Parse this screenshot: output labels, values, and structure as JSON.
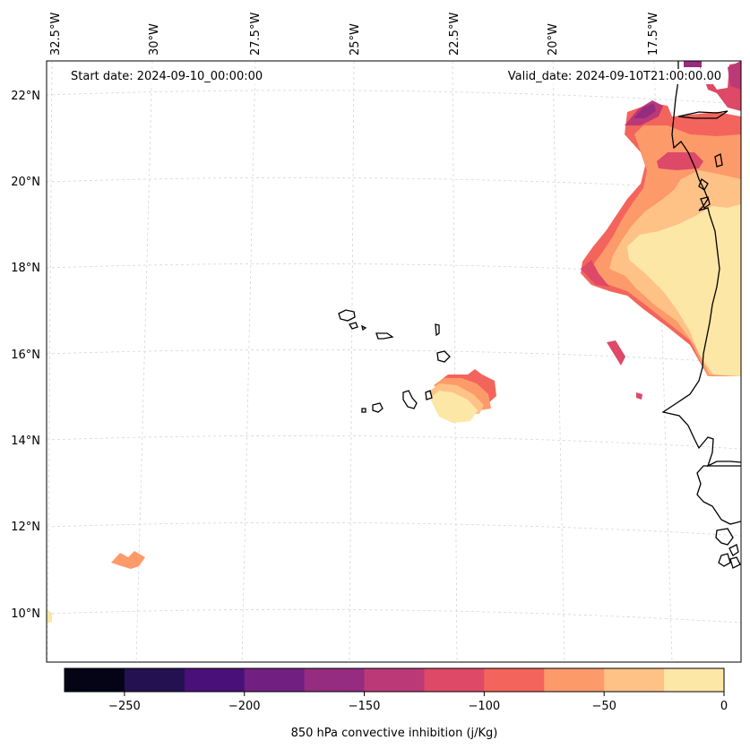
{
  "map": {
    "projection": "lambert-conformal",
    "lon_labels": [
      "32.5°W",
      "30°W",
      "27.5°W",
      "25°W",
      "22.5°W",
      "20°W",
      "17.5°W"
    ],
    "lat_labels": [
      "22°N",
      "20°N",
      "18°N",
      "16°N",
      "14°N",
      "12°N",
      "10°N"
    ],
    "coastline_color": "#000000",
    "grid_color": "#d0d0d0"
  },
  "annotations": {
    "start_date": "Start date: 2024-09-10_00:00:00",
    "valid_date": "Valid_date: 2024-09-10T21:00:00.00"
  },
  "colorbar": {
    "label": "850 hPa convective inhibition (j/Kg)",
    "ticks": [
      "−250",
      "−200",
      "−150",
      "−100",
      "−50",
      "0"
    ],
    "levels": [
      -275,
      -250,
      -225,
      -200,
      -175,
      -150,
      -125,
      -100,
      -75,
      -50,
      -25,
      0
    ],
    "colors": [
      "#050417",
      "#231151",
      "#4a1079",
      "#711f81",
      "#952c80",
      "#bc3978",
      "#de4968",
      "#f3655c",
      "#fd9a6a",
      "#fec287",
      "#fde7a6"
    ]
  }
}
